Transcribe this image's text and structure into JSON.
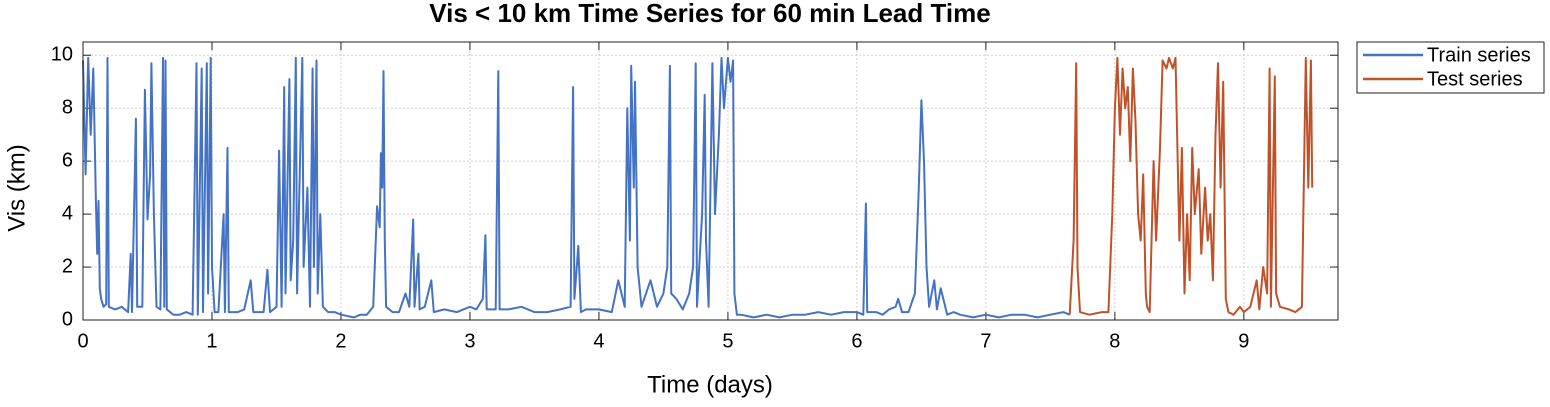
{
  "chart_data": {
    "type": "line",
    "title": "Vis < 10 km Time Series for 60 min Lead Time",
    "xlabel": "Time (days)",
    "ylabel": "Vis (km)",
    "xlim": [
      0,
      9.73
    ],
    "ylim": [
      0,
      10.5
    ],
    "xticks": [
      0,
      1,
      2,
      3,
      4,
      5,
      6,
      7,
      8,
      9
    ],
    "yticks": [
      0,
      2,
      4,
      6,
      8,
      10
    ],
    "grid": true,
    "legend": "upper right outside",
    "series": [
      {
        "name": "Train series",
        "color": "#4472c4",
        "x": [
          0,
          0.02,
          0.04,
          0.06,
          0.08,
          0.1,
          0.11,
          0.12,
          0.13,
          0.14,
          0.16,
          0.18,
          0.19,
          0.2,
          0.25,
          0.3,
          0.35,
          0.37,
          0.38,
          0.41,
          0.42,
          0.46,
          0.48,
          0.5,
          0.52,
          0.53,
          0.55,
          0.57,
          0.6,
          0.62,
          0.63,
          0.64,
          0.65,
          0.7,
          0.75,
          0.8,
          0.85,
          0.88,
          0.89,
          0.92,
          0.93,
          0.96,
          0.97,
          0.99,
          1.0,
          1.02,
          1.05,
          1.09,
          1.1,
          1.12,
          1.13,
          1.2,
          1.25,
          1.3,
          1.32,
          1.4,
          1.43,
          1.45,
          1.5,
          1.52,
          1.54,
          1.56,
          1.57,
          1.6,
          1.61,
          1.63,
          1.65,
          1.66,
          1.7,
          1.71,
          1.74,
          1.76,
          1.78,
          1.79,
          1.81,
          1.82,
          1.84,
          1.86,
          1.9,
          1.95,
          2.0,
          2.1,
          2.15,
          2.2,
          2.25,
          2.28,
          2.3,
          2.31,
          2.32,
          2.33,
          2.34,
          2.35,
          2.4,
          2.45,
          2.5,
          2.53,
          2.56,
          2.57,
          2.6,
          2.61,
          2.65,
          2.7,
          2.72,
          2.8,
          2.9,
          3.0,
          3.05,
          3.1,
          3.12,
          3.13,
          3.2,
          3.22,
          3.23,
          3.3,
          3.4,
          3.5,
          3.6,
          3.7,
          3.78,
          3.8,
          3.81,
          3.84,
          3.86,
          3.9,
          4.0,
          4.1,
          4.15,
          4.2,
          4.22,
          4.24,
          4.25,
          4.27,
          4.28,
          4.3,
          4.33,
          4.4,
          4.45,
          4.5,
          4.53,
          4.55,
          4.56,
          4.6,
          4.65,
          4.7,
          4.73,
          4.75,
          4.76,
          4.8,
          4.82,
          4.83,
          4.85,
          4.88,
          4.9,
          4.93,
          4.95,
          4.97,
          5.0,
          5.02,
          5.04,
          5.05,
          5.07,
          5.1,
          5.2,
          5.3,
          5.4,
          5.5,
          5.6,
          5.7,
          5.8,
          5.9,
          6.0,
          6.05,
          6.07,
          6.08,
          6.15,
          6.2,
          6.25,
          6.3,
          6.32,
          6.35,
          6.4,
          6.45,
          6.48,
          6.5,
          6.52,
          6.54,
          6.56,
          6.6,
          6.62,
          6.65,
          6.7,
          6.75,
          6.8,
          6.9,
          7.0,
          7.1,
          7.2,
          7.3,
          7.4,
          7.5,
          7.6,
          7.65
        ],
        "values": [
          9.8,
          5.5,
          9.9,
          7,
          9.5,
          4.5,
          2.5,
          4.5,
          1.2,
          0.8,
          0.5,
          0.6,
          9.9,
          0.5,
          0.4,
          0.5,
          0.3,
          2.5,
          0.3,
          7.6,
          0.5,
          0.5,
          8.7,
          3.8,
          5.5,
          9.7,
          4,
          0.5,
          0.4,
          9.9,
          0.5,
          9.8,
          0.4,
          0.2,
          0.2,
          0.3,
          0.2,
          9.7,
          0.2,
          9.5,
          0.3,
          9.7,
          1,
          9.9,
          2,
          0.3,
          0.3,
          4,
          0.3,
          6.5,
          0.3,
          0.3,
          0.4,
          1.5,
          0.3,
          0.3,
          1.9,
          0.3,
          0.5,
          6.4,
          0.5,
          8.8,
          1,
          9.1,
          1.5,
          3,
          9.9,
          1,
          9.9,
          2,
          5,
          0.5,
          9.5,
          2,
          9.8,
          1,
          4,
          0.5,
          0.3,
          0.3,
          0.2,
          0.1,
          0.2,
          0.2,
          0.5,
          4.3,
          3.5,
          6.3,
          5,
          9.4,
          3,
          0.5,
          0.3,
          0.3,
          1,
          0.5,
          3.8,
          0.5,
          2.5,
          0.4,
          0.5,
          1.5,
          0.3,
          0.4,
          0.3,
          0.5,
          0.4,
          0.8,
          3.2,
          0.4,
          0.4,
          9.4,
          0.4,
          0.4,
          0.5,
          0.3,
          0.3,
          0.4,
          0.5,
          8.8,
          0.8,
          2.8,
          0.3,
          0.4,
          0.4,
          0.3,
          1.5,
          0.5,
          8,
          3,
          9.6,
          5,
          9,
          2,
          0.5,
          1.5,
          0.5,
          1,
          2,
          9.6,
          1,
          0.8,
          0.4,
          1,
          2,
          9.7,
          0.5,
          4,
          8.5,
          3,
          0.5,
          9.7,
          4,
          7,
          9.9,
          8,
          9.9,
          9,
          9.8,
          1,
          0.2,
          0.2,
          0.1,
          0.2,
          0.1,
          0.2,
          0.2,
          0.3,
          0.2,
          0.3,
          0.3,
          0.2,
          4.4,
          0.3,
          0.3,
          0.2,
          0.4,
          0.5,
          0.8,
          0.3,
          0.3,
          1,
          5,
          8.3,
          6,
          2,
          0.5,
          1.5,
          0.4,
          1.2,
          0.2,
          0.3,
          0.2,
          0.1,
          0.2,
          0.1,
          0.2,
          0.2,
          0.1,
          0.2,
          0.3,
          0.2
        ]
      },
      {
        "name": "Test series",
        "color": "#c0522a",
        "x": [
          7.65,
          7.68,
          7.7,
          7.71,
          7.73,
          7.8,
          7.9,
          7.95,
          7.98,
          8.0,
          8.02,
          8.04,
          8.06,
          8.08,
          8.1,
          8.12,
          8.14,
          8.16,
          8.18,
          8.2,
          8.22,
          8.24,
          8.25,
          8.27,
          8.3,
          8.32,
          8.35,
          8.37,
          8.4,
          8.42,
          8.45,
          8.47,
          8.5,
          8.52,
          8.54,
          8.56,
          8.58,
          8.6,
          8.62,
          8.65,
          8.67,
          8.7,
          8.72,
          8.74,
          8.76,
          8.78,
          8.8,
          8.82,
          8.84,
          8.86,
          8.88,
          8.92,
          8.97,
          9.0,
          9.05,
          9.1,
          9.12,
          9.15,
          9.18,
          9.2,
          9.21,
          9.24,
          9.25,
          9.28,
          9.35,
          9.4,
          9.45,
          9.48,
          9.5,
          9.52,
          9.53
        ],
        "values": [
          0.2,
          3,
          9.7,
          2,
          0.3,
          0.2,
          0.3,
          0.3,
          4,
          8,
          9.9,
          7,
          9.5,
          8,
          8.8,
          6,
          9.5,
          7.5,
          4,
          3,
          5.5,
          1,
          0.5,
          0.3,
          6,
          3,
          6.5,
          9.8,
          9.5,
          9.9,
          9.5,
          9.9,
          3,
          6.5,
          1,
          4,
          1.5,
          6.5,
          4,
          5.7,
          2.5,
          5,
          3,
          4,
          1.5,
          7,
          9.7,
          5,
          9,
          0.8,
          0.3,
          0.2,
          0.5,
          0.3,
          0.5,
          1.5,
          0.4,
          2,
          1,
          9.5,
          0.5,
          9.2,
          1,
          0.5,
          0.4,
          0.3,
          0.5,
          9.9,
          5,
          9.8,
          5
        ]
      }
    ]
  }
}
